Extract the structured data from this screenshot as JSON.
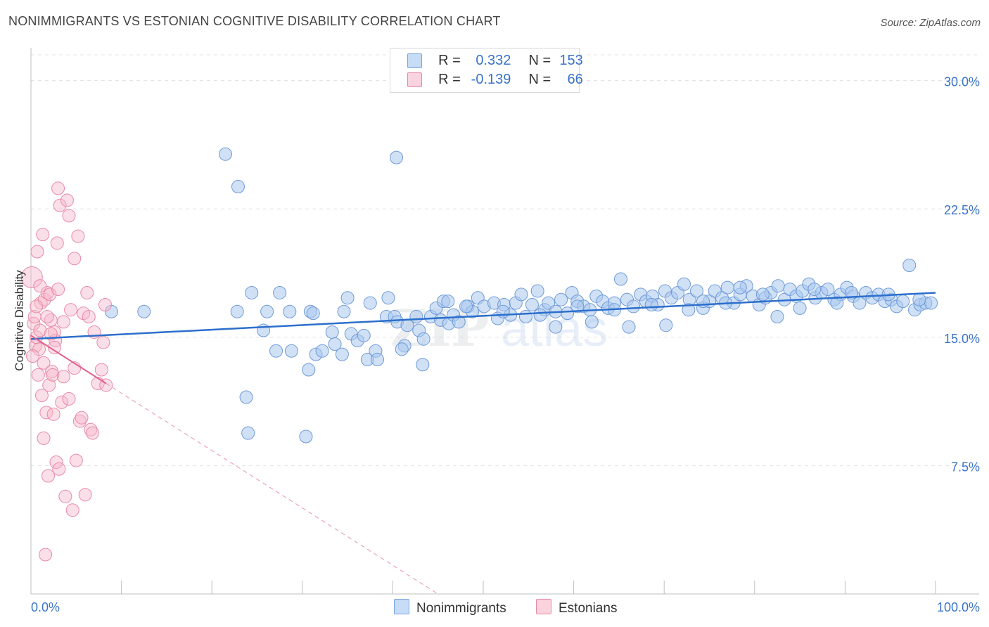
{
  "title": "NONIMMIGRANTS VS ESTONIAN COGNITIVE DISABILITY CORRELATION CHART",
  "source": "Source: ZipAtlas.com",
  "legend_top": [
    {
      "r_label": "R =",
      "r_value": "0.332",
      "n_label": "N =",
      "n_value": "153",
      "color": "#a9c8ef"
    },
    {
      "r_label": "R =",
      "r_value": "-0.139",
      "n_label": "N =",
      "n_value": "66",
      "color": "#f6b9cb"
    }
  ],
  "legend_bottom": [
    "Nonimmigrants",
    "Estonians"
  ],
  "colors": {
    "blue_fill": "#a9c8ef",
    "blue_line": "#2c6fcc",
    "pink_fill": "#f6b9cb",
    "pink_line": "#e0608a",
    "tick_text": "#3a74c9"
  },
  "chart_data": {
    "type": "scatter",
    "title": "NONIMMIGRANTS VS ESTONIAN COGNITIVE DISABILITY CORRELATION CHART",
    "xlabel": "",
    "ylabel": "Cognitive Disability",
    "xlim": [
      0,
      100
    ],
    "ylim": [
      0,
      31.5
    ],
    "x_tick_labels": [
      "0.0%",
      "100.0%"
    ],
    "y_ticks": [
      7.5,
      15.0,
      22.5,
      30.0
    ],
    "y_tick_labels": [
      "7.5%",
      "15.0%",
      "22.5%",
      "30.0%"
    ],
    "grid": true,
    "legend_position": "top-center",
    "series": [
      {
        "name": "Nonimmigrants",
        "color": "#a9c8ef",
        "trend": {
          "x": [
            0,
            100
          ],
          "y": [
            14.9,
            17.6
          ]
        },
        "x": [
          8.9,
          12.5,
          21.5,
          22.8,
          24.4,
          25.7,
          26.1,
          27.1,
          27.5,
          28.6,
          28.8,
          30.7,
          30.9,
          31.5,
          32.2,
          33.3,
          33.6,
          34.4,
          34.6,
          35.4,
          36.1,
          37.2,
          37.5,
          38.1,
          38.3,
          39.3,
          39.5,
          40.2,
          40.5,
          41.3,
          41.6,
          42.6,
          42.9,
          43.4,
          44.2,
          44.8,
          45.3,
          45.6,
          46.2,
          46.7,
          47.3,
          48.3,
          48.8,
          49.4,
          50.1,
          51.2,
          51.6,
          52.3,
          53.0,
          53.6,
          54.2,
          54.7,
          55.4,
          56.0,
          56.8,
          57.2,
          58.0,
          58.6,
          59.3,
          59.8,
          60.4,
          61.1,
          61.8,
          62.5,
          63.2,
          63.8,
          64.5,
          65.2,
          65.9,
          66.6,
          67.4,
          68.0,
          68.7,
          69.3,
          70.1,
          70.8,
          71.5,
          72.2,
          72.8,
          73.6,
          74.3,
          75.0,
          75.6,
          76.4,
          77.0,
          77.7,
          78.4,
          79.1,
          79.8,
          80.5,
          81.2,
          81.8,
          82.6,
          83.3,
          83.9,
          84.6,
          85.3,
          86.0,
          86.7,
          87.4,
          88.1,
          88.8,
          89.5,
          90.2,
          90.9,
          91.6,
          92.3,
          93.0,
          93.7,
          94.4,
          95.1,
          95.7,
          96.4,
          97.1,
          97.7,
          98.3,
          98.9,
          99.5,
          22.9,
          40.4,
          24.0,
          30.4,
          23.8,
          41.0,
          43.3,
          31.2,
          35.0,
          46.1,
          36.8,
          58.0,
          62.0,
          66.1,
          70.2,
          74.3,
          78.4,
          82.5,
          86.6,
          90.7,
          94.8,
          98.2,
          48.1,
          52.2,
          56.3,
          60.4,
          64.5,
          68.6,
          72.7,
          76.8,
          80.9,
          85.0,
          89.1
        ],
        "y": [
          16.5,
          16.5,
          25.7,
          16.5,
          17.6,
          15.4,
          16.5,
          14.2,
          17.6,
          16.5,
          14.2,
          13.1,
          16.5,
          14.0,
          14.2,
          15.3,
          14.6,
          14.0,
          16.5,
          15.2,
          14.8,
          13.7,
          17.0,
          14.2,
          13.7,
          16.2,
          17.3,
          16.2,
          15.9,
          14.5,
          15.7,
          16.2,
          15.4,
          14.9,
          16.2,
          16.7,
          16.0,
          17.1,
          15.8,
          16.3,
          15.9,
          16.8,
          16.5,
          17.3,
          16.8,
          17.0,
          16.1,
          16.9,
          16.3,
          17.0,
          17.5,
          16.2,
          16.9,
          17.7,
          16.6,
          17.0,
          16.5,
          17.2,
          16.4,
          17.6,
          17.1,
          16.8,
          16.6,
          17.4,
          17.1,
          16.7,
          17.0,
          18.4,
          17.2,
          16.8,
          17.5,
          17.1,
          17.4,
          16.9,
          17.7,
          17.3,
          17.6,
          18.1,
          17.2,
          17.7,
          16.7,
          17.1,
          17.7,
          17.3,
          17.9,
          17.0,
          17.5,
          18.0,
          17.4,
          16.9,
          17.3,
          17.6,
          18.0,
          17.2,
          17.8,
          17.4,
          17.7,
          18.1,
          17.3,
          17.6,
          17.8,
          17.2,
          17.5,
          17.9,
          17.4,
          17.0,
          17.6,
          17.3,
          17.5,
          17.1,
          17.2,
          16.8,
          17.1,
          19.2,
          16.6,
          16.9,
          17.0,
          17.0,
          23.8,
          25.5,
          9.4,
          9.2,
          11.5,
          14.3,
          13.4,
          16.4,
          17.3,
          17.1,
          15.1,
          15.6,
          15.9,
          15.6,
          15.7,
          17.1,
          17.9,
          16.2,
          17.8,
          17.6,
          17.5,
          17.2,
          16.8,
          16.5,
          16.3,
          16.8,
          16.6,
          16.9,
          16.6,
          17.0,
          17.5,
          16.7,
          17.0
        ]
      },
      {
        "name": "Estonians",
        "color": "#f6b9cb",
        "trend": {
          "x": [
            0,
            8.3
          ],
          "y": [
            15.1,
            12.3
          ]
        },
        "trend_extension": {
          "x": [
            8.3,
            45.0
          ],
          "y": [
            12.3,
            0.0
          ]
        },
        "x": [
          0.1,
          0.3,
          0.4,
          0.5,
          0.6,
          0.7,
          0.8,
          0.9,
          1.0,
          1.1,
          1.2,
          1.3,
          1.4,
          1.5,
          1.6,
          1.7,
          1.8,
          1.9,
          2.0,
          2.1,
          2.2,
          2.3,
          2.4,
          2.5,
          2.6,
          2.7,
          2.8,
          2.9,
          3.0,
          3.1,
          3.2,
          3.4,
          3.6,
          3.8,
          4.0,
          4.2,
          4.4,
          4.6,
          4.8,
          5.0,
          5.2,
          5.4,
          5.6,
          5.8,
          6.0,
          6.2,
          6.4,
          6.6,
          6.8,
          7.0,
          7.4,
          7.8,
          8.0,
          8.2,
          8.3,
          0.2,
          0.6,
          1.0,
          1.4,
          1.8,
          2.2,
          2.6,
          3.0,
          3.6,
          4.2,
          4.8
        ],
        "y": [
          18.5,
          15.8,
          16.2,
          14.5,
          15.0,
          20.0,
          12.8,
          14.3,
          15.4,
          17.0,
          11.6,
          21.0,
          13.5,
          17.2,
          2.3,
          10.6,
          17.6,
          6.9,
          12.2,
          17.5,
          16.0,
          13.0,
          12.8,
          10.5,
          15.3,
          14.8,
          7.7,
          20.5,
          23.7,
          7.3,
          22.7,
          11.2,
          12.7,
          5.7,
          23.0,
          22.1,
          16.6,
          4.9,
          19.6,
          7.8,
          20.9,
          10.1,
          10.3,
          16.4,
          5.8,
          17.6,
          16.2,
          9.6,
          9.4,
          15.3,
          12.3,
          13.1,
          14.7,
          16.9,
          12.2,
          13.9,
          16.8,
          18.0,
          9.1,
          16.2,
          15.2,
          14.4,
          17.8,
          15.9,
          11.4,
          13.2
        ]
      }
    ]
  }
}
